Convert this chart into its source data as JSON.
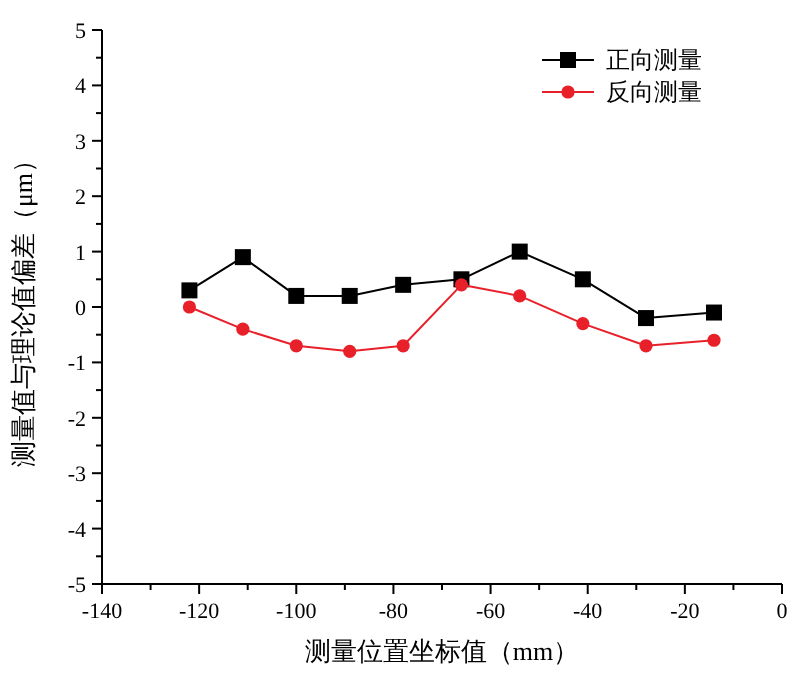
{
  "chart_data": {
    "type": "line",
    "xlabel": "测量位置坐标值（mm）",
    "ylabel": "测量值与理论值偏差（μm）",
    "x": [
      -122,
      -111,
      -100,
      -89,
      -78,
      -66,
      -54,
      -41,
      -28,
      -14
    ],
    "series": [
      {
        "name": "正向测量",
        "color": "#000000",
        "marker": "square",
        "values": [
          0.3,
          0.9,
          0.2,
          0.2,
          0.4,
          0.5,
          1.0,
          0.5,
          -0.2,
          -0.1
        ]
      },
      {
        "name": "反向测量",
        "color": "#e8202a",
        "marker": "circle",
        "values": [
          0,
          -0.4,
          -0.7,
          -0.8,
          -0.7,
          0.4,
          0.2,
          -0.3,
          -0.7,
          -0.6
        ]
      }
    ],
    "xlim": [
      -140,
      0
    ],
    "xticks": [
      -140,
      {
        "value": -130,
        "label": null
      },
      -120,
      {
        "value": -110,
        "label": null
      },
      -100,
      {
        "value": -90,
        "label": null
      },
      -80,
      {
        "value": -70,
        "label": null
      },
      -60,
      {
        "value": -50,
        "label": null
      },
      -40,
      {
        "value": -30,
        "label": null
      },
      -20,
      {
        "value": -10,
        "label": null
      },
      0
    ],
    "ylim": [
      -5,
      5
    ],
    "yticks": [
      -5,
      {
        "value": -4.5,
        "label": null
      },
      -4,
      {
        "value": -3.5,
        "label": null
      },
      -3,
      {
        "value": -2.5,
        "label": null
      },
      -2,
      {
        "value": -1.5,
        "label": null
      },
      -1,
      {
        "value": -0.5,
        "label": null
      },
      0,
      {
        "value": 0.5,
        "label": null
      },
      1,
      {
        "value": 1.5,
        "label": null
      },
      2,
      {
        "value": 2.5,
        "label": null
      },
      3,
      {
        "value": 3.5,
        "label": null
      },
      4,
      {
        "value": 4.5,
        "label": null
      },
      5
    ],
    "legend": "top right",
    "grid": false
  }
}
